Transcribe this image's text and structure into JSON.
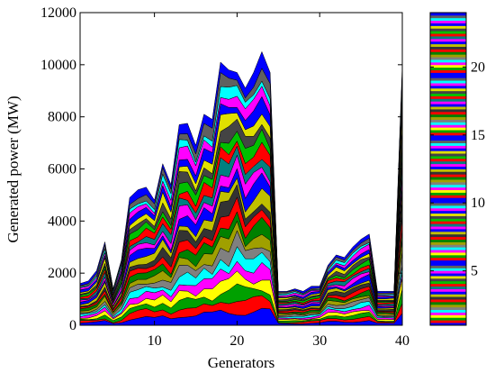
{
  "chart_data": {
    "type": "area",
    "stacked": true,
    "xlabel": "Generators",
    "ylabel": "Generated power (MW)",
    "xlim": [
      1,
      40
    ],
    "ylim": [
      0,
      12000
    ],
    "x_ticks": [
      10,
      20,
      30,
      40
    ],
    "y_ticks": [
      0,
      2000,
      4000,
      6000,
      8000,
      10000,
      12000
    ],
    "grid": false,
    "x": [
      1,
      2,
      3,
      4,
      5,
      6,
      7,
      8,
      9,
      10,
      11,
      12,
      13,
      14,
      15,
      16,
      17,
      18,
      19,
      20,
      21,
      22,
      23,
      24,
      25,
      26,
      27,
      28,
      29,
      30,
      31,
      32,
      33,
      34,
      35,
      36,
      37,
      38,
      39,
      40
    ],
    "totals": [
      1600,
      1700,
      2100,
      3200,
      1400,
      2500,
      4900,
      5200,
      5300,
      4800,
      6200,
      5400,
      7700,
      7750,
      6900,
      8100,
      7900,
      10100,
      9800,
      9700,
      9100,
      9700,
      10500,
      9700,
      1300,
      1300,
      1400,
      1300,
      1500,
      1500,
      2300,
      2700,
      2600,
      3000,
      3300,
      3500,
      1300,
      1300,
      1300,
      10000
    ],
    "num_series": 24,
    "palette": [
      "#0000ff",
      "#ff0000",
      "#00a000",
      "#ffff00",
      "#ff00ff",
      "#00ffff",
      "#808080",
      "#a0a000",
      "#008000",
      "#ff0000",
      "#333333",
      "#c0c000",
      "#0000ff",
      "#ff00ff",
      "#008080",
      "#ff0000",
      "#00c000",
      "#444444",
      "#e0e000",
      "#0000ff",
      "#ff00ff",
      "#00ffff",
      "#606060",
      "#0000ff"
    ],
    "colorbar": {
      "ticks": [
        5,
        10,
        15,
        20
      ],
      "range": [
        1,
        24
      ]
    }
  }
}
